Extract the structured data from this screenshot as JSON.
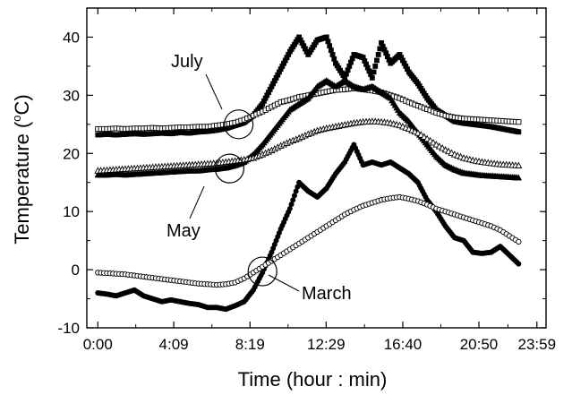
{
  "chart_data": {
    "type": "scatter",
    "title": "",
    "xlabel": "Time (hour : min)",
    "ylabel_main": "Temperature (",
    "ylabel_sup": "o",
    "ylabel_end": "C)",
    "xlim": [
      -0.6,
      24.5
    ],
    "ylim": [
      -10,
      45
    ],
    "x_ticks": [
      0,
      4.15,
      8.32,
      12.48,
      16.67,
      20.83,
      24
    ],
    "x_tick_labels": [
      "0:00",
      "4:09",
      "8:19",
      "12:29",
      "16:40",
      "20:50",
      "23:59"
    ],
    "y_ticks": [
      -10,
      0,
      10,
      20,
      30,
      40
    ],
    "y_tick_labels": [
      "-10",
      "0",
      "10",
      "20",
      "30",
      "40"
    ],
    "grid": false,
    "annotations": [
      {
        "text": "July",
        "target_x": 7.7,
        "target_y": 25
      },
      {
        "text": "May",
        "target_x": 7.2,
        "target_y": 17.4
      },
      {
        "text": "March",
        "target_x": 9.0,
        "target_y": -0.3
      }
    ],
    "series": [
      {
        "marker": "square-filled",
        "x": [
          0,
          0.5,
          1,
          1.5,
          2,
          2.5,
          3,
          3.5,
          4,
          4.5,
          5,
          5.5,
          6,
          6.5,
          7,
          7.5,
          8,
          8.5,
          9,
          9.5,
          10,
          10.5,
          11,
          11.5,
          12,
          12.5,
          13,
          13.5,
          14,
          14.5,
          15,
          15.5,
          16,
          16.5,
          17,
          17.5,
          18,
          18.5,
          19,
          19.5,
          20,
          20.5,
          21,
          21.5,
          22,
          22.5,
          23
        ],
        "y": [
          23.2,
          23.3,
          23.2,
          23.3,
          23.4,
          23.3,
          23.4,
          23.5,
          23.4,
          23.6,
          23.5,
          23.7,
          23.8,
          24.0,
          24.3,
          24.8,
          25.3,
          26.5,
          28.5,
          31.5,
          34.5,
          37.5,
          40.0,
          37.0,
          39.5,
          40.0,
          35.5,
          33.0,
          37.0,
          36.5,
          33.0,
          39.0,
          35.5,
          37.0,
          34.0,
          32.0,
          29.5,
          27.5,
          26.5,
          25.5,
          25.2,
          25.0,
          24.8,
          24.6,
          24.3,
          24.0,
          23.7
        ]
      },
      {
        "marker": "square-open",
        "x": [
          0,
          0.5,
          1,
          1.5,
          2,
          2.5,
          3,
          3.5,
          4,
          4.5,
          5,
          5.5,
          6,
          6.5,
          7,
          7.5,
          8,
          8.5,
          9,
          9.5,
          10,
          10.5,
          11,
          11.5,
          12,
          12.5,
          13,
          13.5,
          14,
          14.5,
          15,
          15.5,
          16,
          16.5,
          17,
          17.5,
          18,
          18.5,
          19,
          19.5,
          20,
          20.5,
          21,
          21.5,
          22,
          22.5,
          23
        ],
        "y": [
          24.2,
          24.2,
          24.3,
          24.2,
          24.3,
          24.3,
          24.4,
          24.3,
          24.4,
          24.5,
          24.5,
          24.6,
          24.6,
          24.8,
          25.0,
          25.3,
          25.8,
          26.5,
          27.2,
          28.0,
          28.8,
          29.2,
          29.7,
          30.0,
          30.3,
          30.6,
          30.9,
          31.0,
          31.2,
          31.0,
          30.8,
          30.5,
          30.0,
          29.5,
          28.8,
          28.2,
          27.6,
          27.0,
          26.5,
          26.2,
          26.0,
          25.9,
          25.8,
          25.7,
          25.6,
          25.5,
          25.4
        ]
      },
      {
        "marker": "triangle-filled",
        "x": [
          0,
          0.5,
          1,
          1.5,
          2,
          2.5,
          3,
          3.5,
          4,
          4.5,
          5,
          5.5,
          6,
          6.5,
          7,
          7.5,
          8,
          8.5,
          9,
          9.5,
          10,
          10.5,
          11,
          11.5,
          12,
          12.5,
          13,
          13.5,
          14,
          14.5,
          15,
          15.5,
          16,
          16.5,
          17,
          17.5,
          18,
          18.5,
          19,
          19.5,
          20,
          20.5,
          21,
          21.5,
          22,
          22.5,
          23
        ],
        "y": [
          16.3,
          16.3,
          16.4,
          16.3,
          16.4,
          16.5,
          16.6,
          16.7,
          16.8,
          16.9,
          17.0,
          17.0,
          17.2,
          17.3,
          17.5,
          17.9,
          18.5,
          19.8,
          21.5,
          23.5,
          25.5,
          27.5,
          28.5,
          29.5,
          31.5,
          32.5,
          31.5,
          32.5,
          31.5,
          31.0,
          31.5,
          30.5,
          29.5,
          27.0,
          25.5,
          23.5,
          21.5,
          19.5,
          18.0,
          17.2,
          16.6,
          16.4,
          16.2,
          16.1,
          16.0,
          15.9,
          15.8
        ]
      },
      {
        "marker": "triangle-open",
        "x": [
          0,
          0.5,
          1,
          1.5,
          2,
          2.5,
          3,
          3.5,
          4,
          4.5,
          5,
          5.5,
          6,
          6.5,
          7,
          7.5,
          8,
          8.5,
          9,
          9.5,
          10,
          10.5,
          11,
          11.5,
          12,
          12.5,
          13,
          13.5,
          14,
          14.5,
          15,
          15.5,
          16,
          16.5,
          17,
          17.5,
          18,
          18.5,
          19,
          19.5,
          20,
          20.5,
          21,
          21.5,
          22,
          22.5,
          23
        ],
        "y": [
          17.0,
          17.1,
          17.2,
          17.3,
          17.4,
          17.5,
          17.6,
          17.7,
          17.8,
          17.9,
          18.0,
          18.1,
          18.2,
          18.3,
          18.5,
          18.7,
          18.9,
          19.2,
          19.8,
          20.5,
          21.3,
          22.0,
          22.6,
          23.3,
          23.9,
          24.3,
          24.6,
          24.9,
          25.2,
          25.4,
          25.5,
          25.4,
          25.2,
          24.8,
          24.2,
          23.5,
          22.5,
          21.5,
          20.6,
          19.8,
          19.2,
          18.8,
          18.5,
          18.3,
          18.1,
          18.0,
          17.9
        ]
      },
      {
        "marker": "circle-filled",
        "x": [
          0,
          0.5,
          1,
          1.5,
          2,
          2.5,
          3,
          3.5,
          4,
          4.5,
          5,
          5.5,
          6,
          6.5,
          7,
          7.5,
          8,
          8.5,
          9,
          9.5,
          10,
          10.5,
          11,
          11.5,
          12,
          12.5,
          13,
          13.5,
          14,
          14.5,
          15,
          15.5,
          16,
          16.5,
          17,
          17.5,
          18,
          18.5,
          19,
          19.5,
          20,
          20.5,
          21,
          21.5,
          22,
          22.5,
          23
        ],
        "y": [
          -4.0,
          -4.2,
          -4.5,
          -4.0,
          -3.5,
          -4.5,
          -5.0,
          -5.5,
          -5.2,
          -5.5,
          -5.8,
          -6.0,
          -6.5,
          -6.5,
          -6.8,
          -6.2,
          -5.5,
          -3.5,
          -0.5,
          3.0,
          7.0,
          10.5,
          15.0,
          13.5,
          12.5,
          14.0,
          16.5,
          18.5,
          21.5,
          18.0,
          18.5,
          18.0,
          18.5,
          17.5,
          16.5,
          15.0,
          12.0,
          10.0,
          7.5,
          5.5,
          5.0,
          3.0,
          2.8,
          3.0,
          4.0,
          2.5,
          1.0
        ]
      },
      {
        "marker": "circle-open",
        "x": [
          0,
          0.5,
          1,
          1.5,
          2,
          2.5,
          3,
          3.5,
          4,
          4.5,
          5,
          5.5,
          6,
          6.5,
          7,
          7.5,
          8,
          8.5,
          9,
          9.5,
          10,
          10.5,
          11,
          11.5,
          12,
          12.5,
          13,
          13.5,
          14,
          14.5,
          15,
          15.5,
          16,
          16.5,
          17,
          17.5,
          18,
          18.5,
          19,
          19.5,
          20,
          20.5,
          21,
          21.5,
          22,
          22.5,
          23
        ],
        "y": [
          -0.5,
          -0.6,
          -0.7,
          -0.8,
          -1.0,
          -1.2,
          -1.4,
          -1.6,
          -1.8,
          -2.0,
          -2.2,
          -2.4,
          -2.5,
          -2.6,
          -2.5,
          -2.2,
          -1.5,
          -0.5,
          0.5,
          1.5,
          2.5,
          3.5,
          4.5,
          5.5,
          6.5,
          7.5,
          8.5,
          9.5,
          10.3,
          11.0,
          11.5,
          12.0,
          12.3,
          12.5,
          12.2,
          11.8,
          11.2,
          10.5,
          10.0,
          9.5,
          9.0,
          8.5,
          8.0,
          7.5,
          6.8,
          5.8,
          4.8
        ]
      }
    ]
  }
}
